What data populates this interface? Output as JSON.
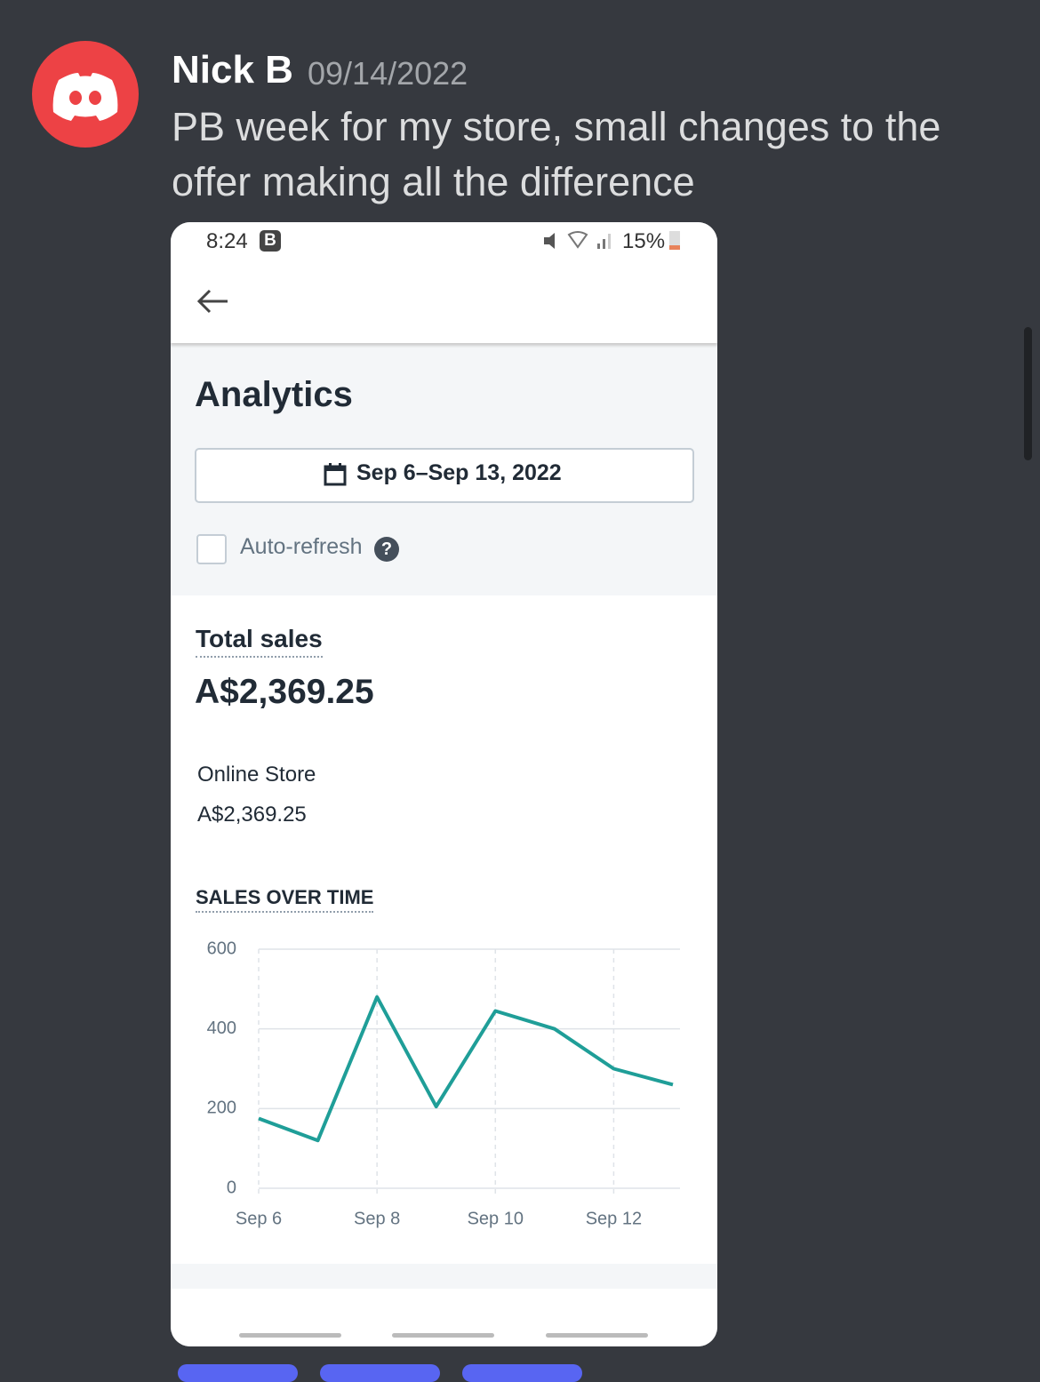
{
  "message": {
    "author": "Nick B",
    "timestamp": "09/14/2022",
    "text": "PB week for my store, small changes to the offer making all the difference"
  },
  "status_bar": {
    "time": "8:24",
    "badge": "B",
    "battery": "15%"
  },
  "analytics": {
    "title": "Analytics",
    "date_range": "Sep 6–Sep 13, 2022",
    "auto_refresh": "Auto-refresh",
    "total_sales_label": "Total sales",
    "total_sales": "A$2,369.25",
    "channel_name": "Online Store",
    "channel_sales": "A$2,369.25"
  },
  "chart_data": {
    "type": "line",
    "title": "SALES OVER TIME",
    "categories": [
      "Sep 6",
      null,
      "Sep 8",
      null,
      "Sep 10",
      null,
      "Sep 12",
      null
    ],
    "values": [
      175,
      120,
      480,
      205,
      445,
      400,
      300,
      260
    ],
    "color": "#1f9e98",
    "ylim": [
      0,
      600
    ],
    "yticks": [
      0,
      200,
      400,
      600
    ],
    "grid": true
  }
}
